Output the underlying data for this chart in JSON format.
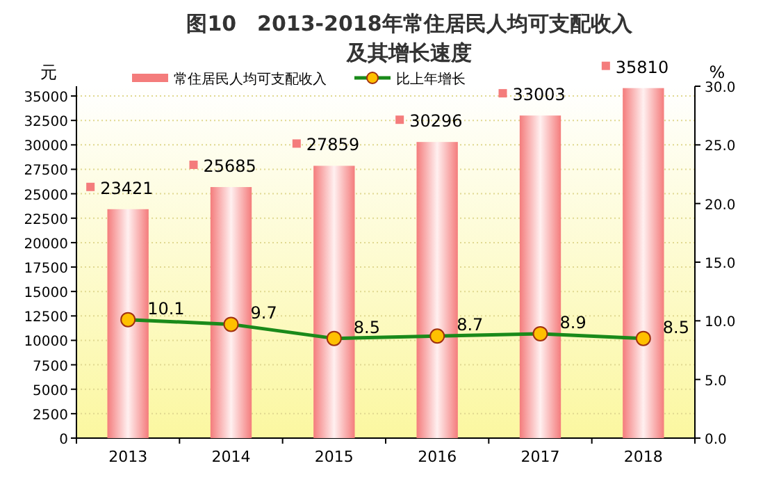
{
  "chart_data": {
    "type": "bar",
    "title": "图10　2013-2018年常住居民人均可支配收入",
    "subtitle": "及其增长速度",
    "ylabel": "元",
    "y2label": "%",
    "categories": [
      "2013",
      "2014",
      "2015",
      "2016",
      "2017",
      "2018"
    ],
    "series": [
      {
        "name": "常住居民人均可支配收入",
        "color": "#f47c7c",
        "values": [
          23421,
          25685,
          27859,
          30296,
          33003,
          35810
        ]
      },
      {
        "name": "比上年增长",
        "type": "line",
        "axis": "y2",
        "color": "#1a8a1a",
        "marker": "circle",
        "values": [
          10.1,
          9.7,
          8.5,
          8.7,
          8.9,
          8.5
        ]
      }
    ],
    "ylim": [
      0,
      36000
    ],
    "yticks": [
      0,
      2500,
      5000,
      7500,
      10000,
      12500,
      15000,
      17500,
      20000,
      22500,
      25000,
      27500,
      30000,
      32500,
      35000
    ],
    "y2lim": [
      0,
      30
    ],
    "y2ticks": [
      {
        "value": 0,
        "label": "0.0"
      },
      {
        "value": 5,
        "label": "5.0"
      },
      {
        "value": 10,
        "label": "10.0"
      },
      {
        "value": 15,
        "label": "15.0"
      },
      {
        "value": 20,
        "label": "20.0"
      },
      {
        "value": 25,
        "label": "25.0"
      },
      {
        "value": 30,
        "label": "30.0"
      }
    ],
    "data_labels": true,
    "grid": "y",
    "legend": "top"
  }
}
